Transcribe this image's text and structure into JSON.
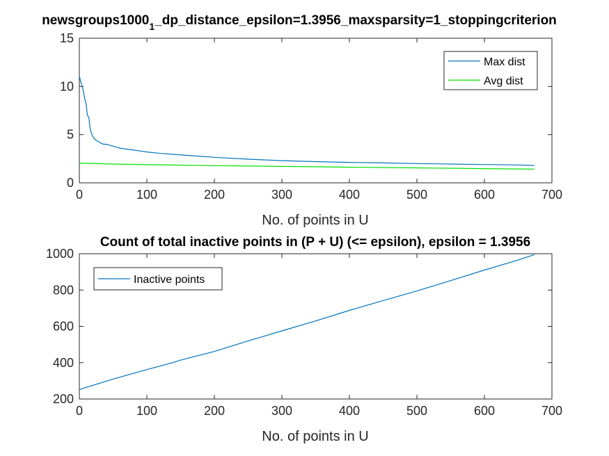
{
  "chart_data": [
    {
      "type": "line",
      "title": "newsgroups1000_1_dp_distance_epsilon=1.3956_maxsparsity=1_stoppingcriterion",
      "title_main": "newsgroups1000",
      "title_sub": "1",
      "title_rest": "_dp_distance_epsilon=1.3956_maxsparsity=1_stoppingcriterion",
      "xlabel": "No. of points in U",
      "ylabel": "",
      "xlim": [
        0,
        700
      ],
      "ylim": [
        0,
        15
      ],
      "xticks": [
        "0",
        "100",
        "200",
        "300",
        "400",
        "500",
        "600",
        "700"
      ],
      "yticks": [
        "0",
        "5",
        "10",
        "15"
      ],
      "legend_position": "top-right",
      "grid": false,
      "series": [
        {
          "name": "Max dist",
          "color": "#0072bd",
          "x": [
            0,
            2,
            4,
            6,
            8,
            10,
            12,
            14,
            15,
            16,
            18,
            20,
            22,
            25,
            28,
            32,
            36,
            40,
            45,
            50,
            55,
            60,
            70,
            80,
            90,
            100,
            120,
            140,
            160,
            180,
            200,
            250,
            300,
            350,
            400,
            450,
            500,
            550,
            600,
            650,
            674
          ],
          "y": [
            11.1,
            10.5,
            10.1,
            9.5,
            8.7,
            8.2,
            7.0,
            6.8,
            6.2,
            5.6,
            5.1,
            4.8,
            4.6,
            4.4,
            4.3,
            4.1,
            4.0,
            4.0,
            3.9,
            3.8,
            3.7,
            3.6,
            3.5,
            3.4,
            3.3,
            3.2,
            3.05,
            2.95,
            2.85,
            2.75,
            2.65,
            2.45,
            2.3,
            2.2,
            2.12,
            2.06,
            2.0,
            1.95,
            1.9,
            1.85,
            1.8
          ]
        },
        {
          "name": "Avg dist",
          "color": "#00e000",
          "x": [
            0,
            50,
            100,
            200,
            300,
            400,
            500,
            600,
            674
          ],
          "y": [
            2.05,
            1.95,
            1.88,
            1.78,
            1.7,
            1.62,
            1.55,
            1.47,
            1.42
          ]
        }
      ]
    },
    {
      "type": "line",
      "title": "Count of total inactive points in (P + U) (<= epsilon), epsilon = 1.3956",
      "xlabel": "No. of points in U",
      "ylabel": "",
      "xlim": [
        0,
        700
      ],
      "ylim": [
        200,
        1000
      ],
      "xticks": [
        "0",
        "100",
        "200",
        "300",
        "400",
        "500",
        "600",
        "700"
      ],
      "yticks": [
        "200",
        "400",
        "600",
        "800",
        "1000"
      ],
      "legend_position": "top-left",
      "grid": false,
      "series": [
        {
          "name": "Inactive points",
          "color": "#0072bd",
          "x": [
            0,
            50,
            100,
            140,
            150,
            200,
            250,
            300,
            350,
            400,
            450,
            500,
            550,
            600,
            650,
            674
          ],
          "y": [
            252,
            310,
            362,
            402,
            414,
            462,
            520,
            575,
            630,
            688,
            742,
            795,
            852,
            910,
            965,
            995
          ]
        }
      ]
    }
  ]
}
